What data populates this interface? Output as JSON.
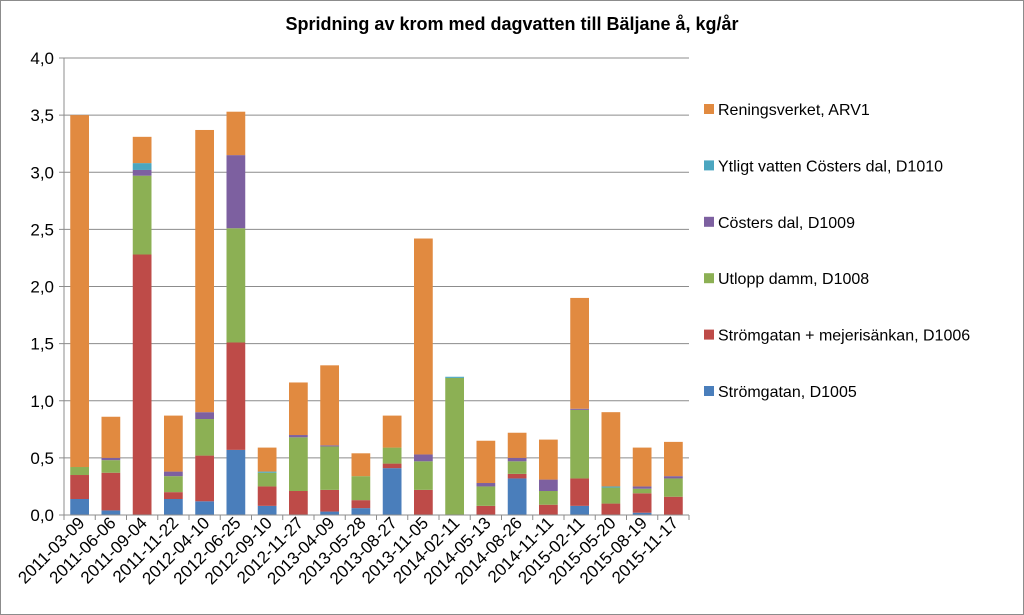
{
  "chart_data": {
    "type": "bar",
    "stacked": true,
    "title": "Spridning av krom med dagvatten till Bäljane å, kg/år",
    "xlabel": "",
    "ylabel": "",
    "ylim": [
      0,
      4
    ],
    "yticks": [
      "0,0",
      "0,5",
      "1,0",
      "1,5",
      "2,0",
      "2,5",
      "3,0",
      "3,5",
      "4,0"
    ],
    "grid": "horizontal",
    "legend_position": "right",
    "categories": [
      "2011-03-09",
      "2011-06-06",
      "2011-09-04",
      "2011-11-22",
      "2012-04-10",
      "2012-06-25",
      "2012-09-10",
      "2012-11-27",
      "2013-04-09",
      "2013-05-28",
      "2013-08-27",
      "2013-11-05",
      "2014-02-11",
      "2014-05-13",
      "2014-08-26",
      "2014-11-11",
      "2015-02-11",
      "2015-05-20",
      "2015-08-19",
      "2015-11-17"
    ],
    "series": [
      {
        "name": "Strömgatan, D1005",
        "color": "#4a7ebb",
        "values": [
          0.14,
          0.04,
          0,
          0.14,
          0.12,
          0.57,
          0.08,
          0,
          0.03,
          0.06,
          0.41,
          0,
          0,
          0,
          0.32,
          0,
          0.08,
          0,
          0.02,
          0
        ]
      },
      {
        "name": "Strömgatan + mejerisänkan, D1006",
        "color": "#be4b48",
        "values": [
          0.21,
          0.33,
          2.28,
          0.06,
          0.4,
          0.94,
          0.17,
          0.21,
          0.19,
          0.07,
          0.04,
          0.22,
          0,
          0.08,
          0.04,
          0.09,
          0.24,
          0.1,
          0.17,
          0.16
        ]
      },
      {
        "name": "Utlopp damm, D1008",
        "color": "#8cb054",
        "values": [
          0.07,
          0.11,
          0.69,
          0.14,
          0.32,
          1.0,
          0.12,
          0.47,
          0.38,
          0.21,
          0.14,
          0.25,
          1.2,
          0.17,
          0.11,
          0.12,
          0.6,
          0.14,
          0.04,
          0.16
        ]
      },
      {
        "name": "Cösters dal, D1009",
        "color": "#7d60a0",
        "values": [
          0,
          0.02,
          0.05,
          0.04,
          0.06,
          0.64,
          0,
          0.02,
          0.01,
          0,
          0,
          0.06,
          0,
          0.03,
          0.03,
          0.1,
          0.01,
          0,
          0.02,
          0.02
        ]
      },
      {
        "name": "Ytligt vatten Cösters dal, D1010",
        "color": "#4ba6c0",
        "values": [
          0,
          0,
          0.06,
          0,
          0,
          0,
          0.01,
          0,
          0,
          0,
          0,
          0,
          0.01,
          0,
          0,
          0,
          0,
          0.01,
          0,
          0
        ]
      },
      {
        "name": "Reningsverket, ARV1",
        "color": "#e18a40",
        "values": [
          3.08,
          0.36,
          0.23,
          0.49,
          2.47,
          0.38,
          0.21,
          0.46,
          0.7,
          0.2,
          0.28,
          1.89,
          0,
          0.37,
          0.22,
          0.35,
          0.97,
          0.65,
          0.34,
          0.3
        ]
      }
    ]
  }
}
